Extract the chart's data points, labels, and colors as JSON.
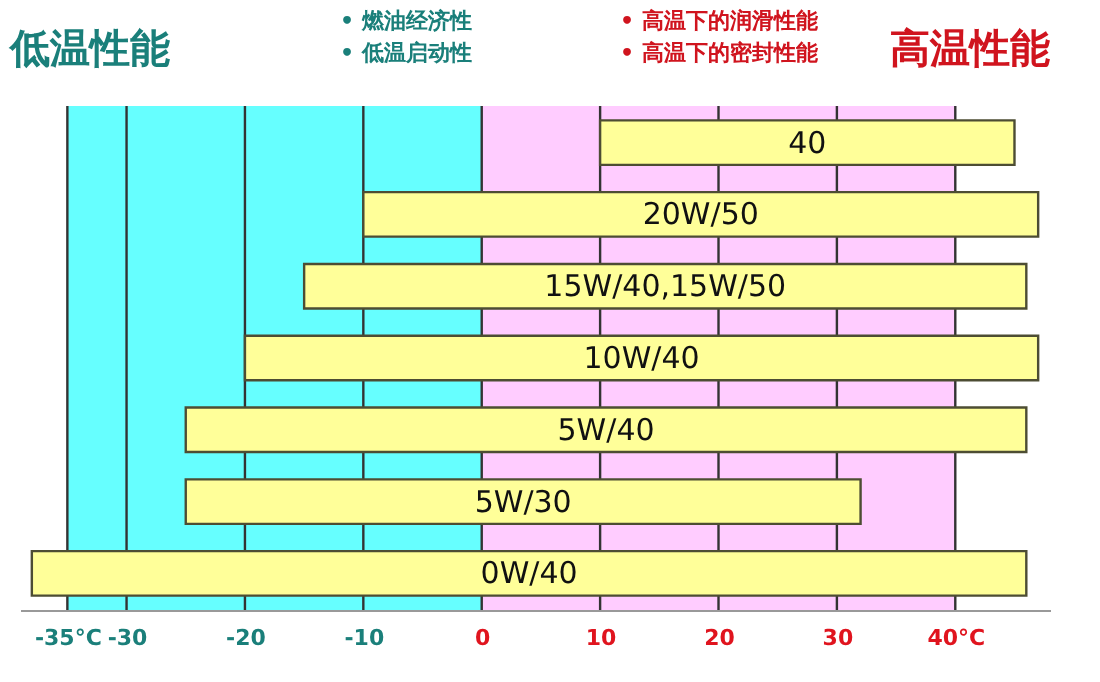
{
  "chart_data": {
    "type": "bar",
    "orientation": "horizontal",
    "categories": [
      "40",
      "20W/50",
      "15W/40,15W/50",
      "10W/40",
      "5W/40",
      "5W/30",
      "0W/40"
    ],
    "base": [
      10,
      -10,
      -15,
      -20,
      -25,
      -25,
      -38
    ],
    "values": [
      35,
      57,
      61,
      67,
      71,
      57,
      84
    ],
    "color": "#ffff99",
    "xlim": [
      -39,
      48
    ],
    "xticks": [
      {
        "value": -35,
        "label": "-35°C"
      },
      -30,
      -20,
      -10,
      0,
      10,
      20,
      30,
      {
        "value": 40,
        "label": "40°C"
      }
    ],
    "grid": "x",
    "bands": [
      {
        "axis": "x",
        "from": -35,
        "to": 0,
        "label": null,
        "color": "#66ffff"
      },
      {
        "axis": "x",
        "from": 0,
        "to": 40,
        "label": null,
        "color": "#ffccff"
      }
    ],
    "annotations": [
      "低温性能",
      "• 燃油经济性",
      "• 低温启动性",
      "• 高温下的润滑性能",
      "• 高温下的密封性能",
      "高温性能"
    ]
  }
}
